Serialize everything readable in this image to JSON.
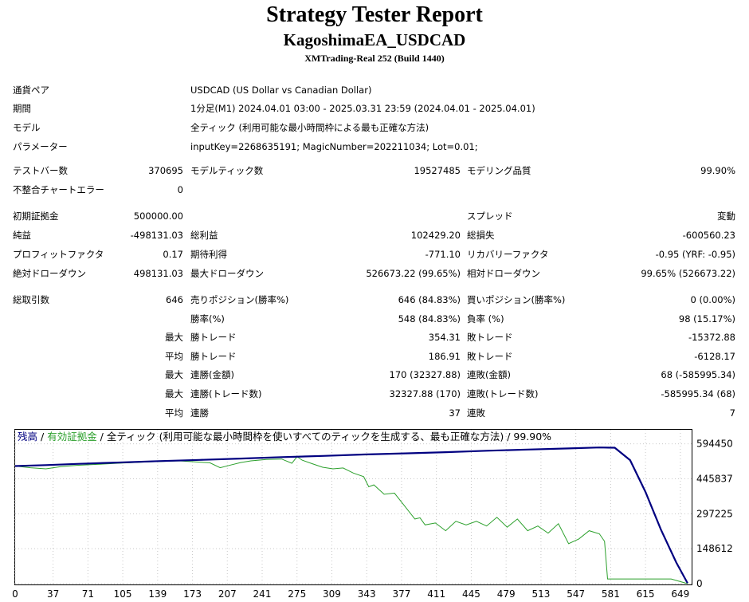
{
  "header": {
    "title": "Strategy Tester Report",
    "subtitle": "KagoshimaEA_USDCAD",
    "server": "XMTrading-Real 252 (Build 1440)"
  },
  "info": {
    "pair_label": "通貨ペア",
    "pair_value": "USDCAD (US Dollar vs Canadian Dollar)",
    "period_label": "期間",
    "period_value": "1分足(M1) 2024.04.01 03:00 - 2025.03.31 23:59 (2024.04.01 - 2025.04.01)",
    "model_label": "モデル",
    "model_value": "全ティック (利用可能な最小時間枠による最も正確な方法)",
    "params_label": "パラメーター",
    "params_value": "inputKey=2268635191; MagicNumber=202211034; Lot=0.01;"
  },
  "stats": {
    "bars_label": "テストバー数",
    "bars_value": "370695",
    "ticks_label": "モデルティック数",
    "ticks_value": "19527485",
    "quality_label": "モデリング品質",
    "quality_value": "99.90%",
    "errors_label": "不整合チャートエラー",
    "errors_value": "0",
    "deposit_label": "初期証拠金",
    "deposit_value": "500000.00",
    "spread_label": "スプレッド",
    "spread_value": "変動",
    "net_label": "純益",
    "net_value": "-498131.03",
    "gross_profit_label": "総利益",
    "gross_profit_value": "102429.20",
    "gross_loss_label": "総損失",
    "gross_loss_value": "-600560.23",
    "pf_label": "プロフィットファクタ",
    "pf_value": "0.17",
    "payoff_label": "期待利得",
    "payoff_value": "-771.10",
    "rf_label": "リカバリーファクタ",
    "rf_value": "-0.95 (YRF: -0.95)",
    "abs_dd_label": "絶対ドローダウン",
    "abs_dd_value": "498131.03",
    "max_dd_label": "最大ドローダウン",
    "max_dd_value": "526673.22 (99.65%)",
    "rel_dd_label": "相対ドローダウン",
    "rel_dd_value": "99.65% (526673.22)",
    "trades_label": "総取引数",
    "trades_value": "646",
    "short_label": "売りポジション(勝率%)",
    "short_value": "646 (84.83%)",
    "long_label": "買いポジション(勝率%)",
    "long_value": "0 (0.00%)",
    "win_label": "勝率(%)",
    "win_value": "548 (84.83%)",
    "loss_label": "負率 (%)",
    "loss_value": "98 (15.17%)",
    "max_word": "最大",
    "avg_word": "平均",
    "max_win_label": "勝トレード",
    "max_win_value": "354.31",
    "max_loss_label": "敗トレード",
    "max_loss_value": "-15372.88",
    "avg_win_label": "勝トレード",
    "avg_win_value": "186.91",
    "avg_loss_label": "敗トレード",
    "avg_loss_value": "-6128.17",
    "consec_win_amt_label": "連勝(金額)",
    "consec_win_amt_value": "170 (32327.88)",
    "consec_loss_amt_label": "連敗(金額)",
    "consec_loss_amt_value": "68 (-585995.34)",
    "consec_win_cnt_label": "連勝(トレード数)",
    "consec_win_cnt_value": "32327.88 (170)",
    "consec_loss_cnt_label": "連敗(トレード数)",
    "consec_loss_cnt_value": "-585995.34 (68)",
    "avg_consec_win_label": "連勝",
    "avg_consec_win_value": "37",
    "avg_consec_loss_label": "連敗",
    "avg_consec_loss_value": "7"
  },
  "chart_data": {
    "type": "line",
    "legend": {
      "balance": "残高",
      "sep1": " / ",
      "equity": "有効証拠金",
      "sep2": " / ",
      "rest": "全ティック (利用可能な最小時間枠を使いすべてのティックを生成する、最も正確な方法) / 99.90%"
    },
    "x_ticks": [
      0,
      37,
      71,
      105,
      139,
      173,
      207,
      241,
      275,
      309,
      343,
      377,
      411,
      445,
      479,
      513,
      547,
      581,
      615,
      649
    ],
    "y_ticks": [
      594450,
      445837,
      297225,
      148612,
      0
    ],
    "xlim": [
      0,
      660
    ],
    "ylim": [
      0,
      600000
    ],
    "colors": {
      "balance": "#000080",
      "equity": "#2ca02c",
      "grid": "#c8c8c8"
    },
    "series": [
      {
        "name": "残高",
        "x": [
          0,
          30,
          60,
          100,
          140,
          180,
          220,
          260,
          300,
          340,
          380,
          420,
          460,
          500,
          540,
          570,
          585,
          600,
          615,
          630,
          645,
          656
        ],
        "y": [
          500000,
          504000,
          509000,
          515000,
          521000,
          526000,
          532000,
          538000,
          543000,
          549000,
          554000,
          559000,
          565000,
          570000,
          575000,
          579000,
          578000,
          525000,
          390000,
          230000,
          90000,
          1869
        ]
      },
      {
        "name": "有効証拠金",
        "x": [
          0,
          15,
          30,
          45,
          60,
          80,
          100,
          130,
          160,
          190,
          200,
          210,
          220,
          230,
          245,
          260,
          270,
          275,
          280,
          290,
          300,
          310,
          320,
          330,
          340,
          345,
          350,
          360,
          370,
          380,
          390,
          395,
          400,
          410,
          420,
          430,
          440,
          450,
          460,
          470,
          480,
          490,
          500,
          510,
          520,
          530,
          540,
          550,
          560,
          570,
          575,
          578,
          585,
          600,
          620,
          640,
          656
        ],
        "y": [
          500000,
          493000,
          488000,
          498000,
          503000,
          507000,
          512000,
          518000,
          522000,
          514000,
          493000,
          504000,
          515000,
          522000,
          528000,
          530000,
          512000,
          540000,
          525000,
          510000,
          495000,
          488000,
          492000,
          470000,
          455000,
          412000,
          420000,
          380000,
          385000,
          330000,
          275000,
          280000,
          250000,
          258000,
          225000,
          265000,
          250000,
          265000,
          245000,
          282000,
          240000,
          275000,
          225000,
          245000,
          215000,
          255000,
          170000,
          190000,
          225000,
          212000,
          180000,
          20000,
          20000,
          20000,
          20000,
          20000,
          0
        ]
      }
    ]
  }
}
